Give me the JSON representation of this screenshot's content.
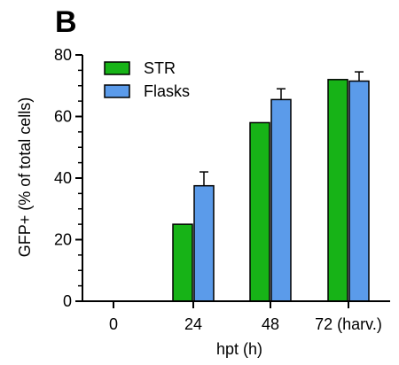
{
  "panel_label": "B",
  "colors": {
    "str": "#17b317",
    "flasks": "#5b9bea",
    "axis": "#000000"
  },
  "chart_data": {
    "type": "bar",
    "xlabel": "hpt (h)",
    "ylabel": "GFP+ (% of total cells)",
    "categories": [
      "0",
      "24",
      "48",
      "72 (harv.)"
    ],
    "ylim": [
      0,
      80
    ],
    "yticks": [
      0,
      20,
      40,
      60,
      80
    ],
    "minor_ticks": true,
    "grid": false,
    "legend_position": "top-left",
    "series": [
      {
        "name": "STR",
        "values": [
          0,
          25,
          58,
          72
        ],
        "errors": [
          0,
          0,
          0,
          0
        ]
      },
      {
        "name": "Flasks",
        "values": [
          0,
          37.5,
          65.5,
          71.5
        ],
        "errors": [
          0,
          4.5,
          3.5,
          3
        ]
      }
    ]
  }
}
